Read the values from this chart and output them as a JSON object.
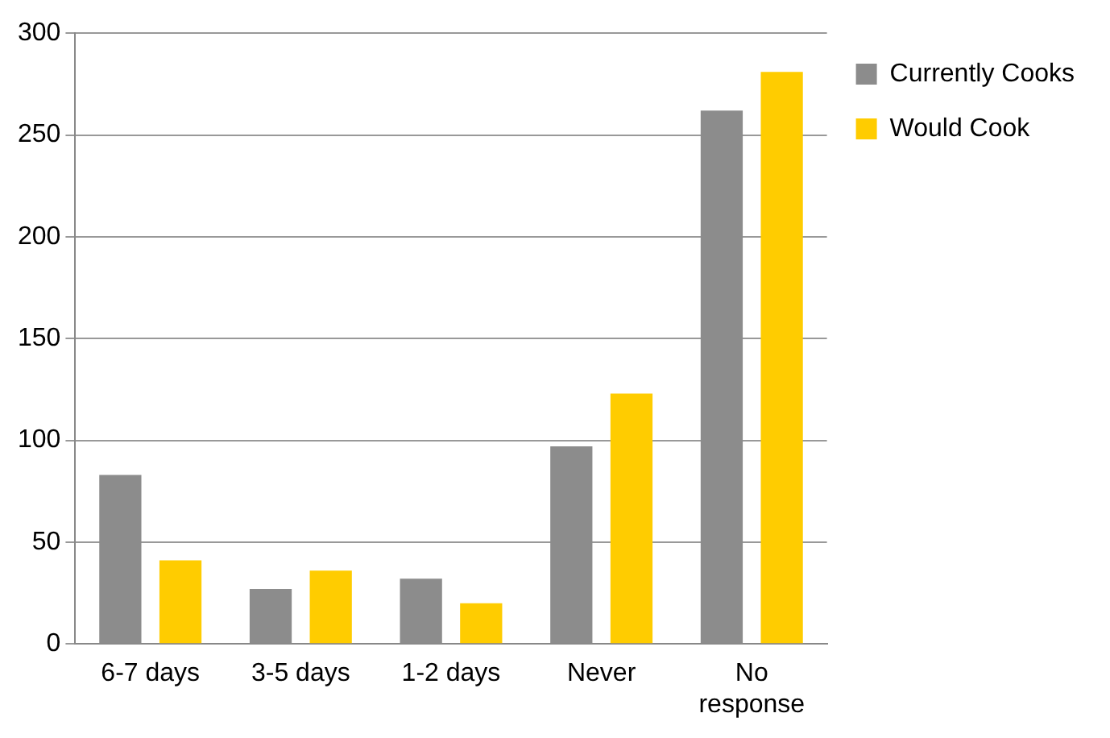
{
  "chart_data": {
    "type": "bar",
    "categories": [
      "6-7 days",
      "3-5 days",
      "1-2 days",
      "Never",
      "No response"
    ],
    "series": [
      {
        "name": "Currently Cooks",
        "color": "#8c8c8c",
        "values": [
          83,
          27,
          32,
          97,
          262
        ]
      },
      {
        "name": "Would Cook",
        "color": "#ffcc00",
        "values": [
          41,
          36,
          20,
          123,
          281
        ]
      }
    ],
    "ylim": [
      0,
      300
    ],
    "yticks": [
      0,
      50,
      100,
      150,
      200,
      250,
      300
    ],
    "grid": "y",
    "legend": "top right"
  }
}
